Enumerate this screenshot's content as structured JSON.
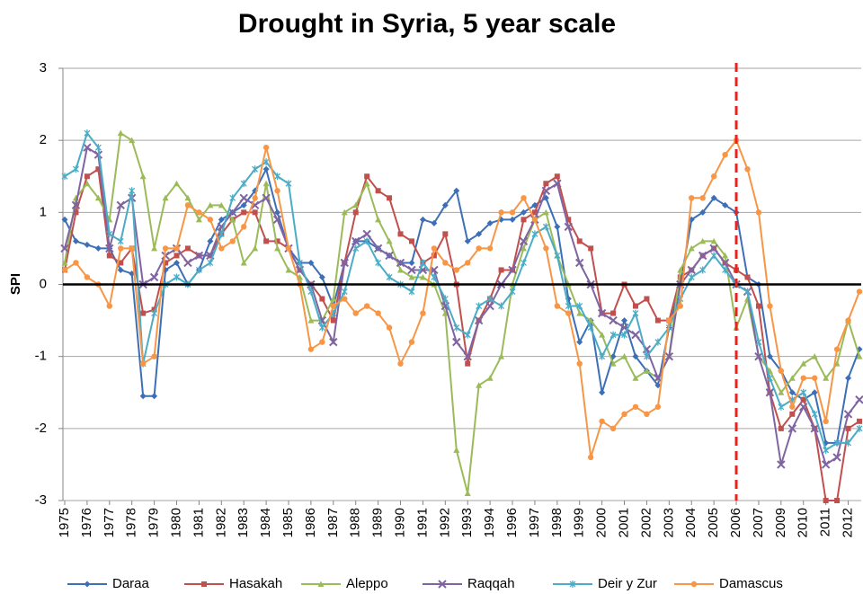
{
  "chart_data": {
    "type": "line",
    "title": "Drought in Syria, 5 year scale",
    "y_label": "SPI",
    "categories": [
      "1975",
      null,
      "1976",
      null,
      "1977",
      null,
      "1978",
      null,
      "1979",
      null,
      "1980",
      null,
      "1981",
      null,
      "1982",
      null,
      "1983",
      null,
      "1984",
      null,
      "1985",
      null,
      "1986",
      null,
      "1987",
      null,
      "1988",
      null,
      "1989",
      null,
      "1990",
      null,
      "1991",
      null,
      "1992",
      null,
      "1993",
      null,
      "1994",
      null,
      "1996",
      null,
      "1997",
      null,
      "1998",
      null,
      "1999",
      null,
      "2000",
      null,
      "2001",
      null,
      "2002",
      null,
      "2003",
      null,
      "2004",
      null,
      "2005",
      null,
      "2006",
      null,
      "2007",
      null,
      "2009",
      null,
      "2010",
      null,
      "2011",
      null,
      "2012",
      null
    ],
    "ylim": [
      -3,
      3
    ],
    "yticks": [
      -3,
      -2,
      -1,
      0,
      1,
      2,
      3
    ],
    "grid": true,
    "hline": 0,
    "vline_index": 60,
    "vline_color": "#e8231f",
    "series": [
      {
        "name": "Daraa",
        "color": "#3d6fb6",
        "marker": "diamond",
        "values": [
          0.9,
          0.6,
          0.55,
          0.5,
          0.5,
          0.2,
          0.15,
          -1.55,
          -1.55,
          0.2,
          0.3,
          0.0,
          0.2,
          0.6,
          0.9,
          1.0,
          1.1,
          1.3,
          1.6,
          1.0,
          0.5,
          0.3,
          0.3,
          0.1,
          -0.3,
          0.3,
          0.6,
          0.6,
          0.5,
          0.4,
          0.3,
          0.3,
          0.9,
          0.85,
          1.1,
          1.3,
          0.6,
          0.7,
          0.85,
          0.9,
          0.9,
          1.0,
          1.1,
          1.2,
          0.8,
          -0.2,
          -0.8,
          -0.5,
          -1.5,
          -1.0,
          -0.5,
          -1.0,
          -1.2,
          -1.4,
          -0.6,
          0.0,
          0.9,
          1.0,
          1.2,
          1.1,
          1.0,
          0.1,
          0.0,
          -1.0,
          -1.2,
          -1.5,
          -1.6,
          -1.5,
          -2.2,
          -2.2,
          -1.3,
          -0.9
        ]
      },
      {
        "name": "Hasakah",
        "color": "#c0504d",
        "marker": "square",
        "values": [
          0.2,
          1.0,
          1.5,
          1.6,
          0.4,
          0.3,
          0.5,
          -0.4,
          -0.35,
          0.3,
          0.4,
          0.5,
          0.4,
          0.4,
          0.7,
          0.9,
          1.0,
          1.0,
          0.6,
          0.6,
          0.5,
          0.2,
          0.0,
          -0.2,
          -0.5,
          0.3,
          1.0,
          1.5,
          1.3,
          1.2,
          0.7,
          0.6,
          0.3,
          0.4,
          0.7,
          0.0,
          -1.1,
          -0.5,
          -0.2,
          0.2,
          0.2,
          0.9,
          1.0,
          1.4,
          1.5,
          0.9,
          0.6,
          0.5,
          -0.4,
          -0.4,
          0.0,
          -0.3,
          -0.2,
          -0.5,
          -0.5,
          0.1,
          0.2,
          0.4,
          0.5,
          0.3,
          0.2,
          0.1,
          -0.3,
          -1.5,
          -2.0,
          -1.8,
          -1.6,
          -2.0,
          -3.0,
          -3.0,
          -2.0,
          -1.9
        ]
      },
      {
        "name": "Aleppo",
        "color": "#9bbb59",
        "marker": "triangle",
        "values": [
          0.3,
          1.2,
          1.4,
          1.2,
          0.9,
          2.1,
          2.0,
          1.5,
          0.5,
          1.2,
          1.4,
          1.2,
          0.9,
          1.1,
          1.1,
          0.9,
          0.3,
          0.5,
          1.4,
          0.5,
          0.2,
          0.1,
          -0.5,
          -0.5,
          -0.2,
          1.0,
          1.1,
          1.4,
          0.9,
          0.6,
          0.2,
          0.1,
          0.1,
          0.0,
          -0.4,
          -2.3,
          -2.9,
          -1.4,
          -1.3,
          -1.0,
          0.0,
          0.5,
          0.9,
          1.0,
          0.4,
          0.0,
          -0.4,
          -0.5,
          -0.7,
          -1.1,
          -1.0,
          -1.3,
          -1.2,
          -1.3,
          -1.0,
          0.2,
          0.5,
          0.6,
          0.6,
          0.4,
          -0.6,
          -0.2,
          -1.0,
          -1.2,
          -1.5,
          -1.3,
          -1.1,
          -1.0,
          -1.3,
          -1.1,
          -0.5,
          -1.0
        ]
      },
      {
        "name": "Raqqah",
        "color": "#8064a2",
        "marker": "x",
        "values": [
          0.5,
          1.1,
          1.9,
          1.8,
          0.5,
          1.1,
          1.2,
          0.0,
          0.1,
          0.4,
          0.5,
          0.3,
          0.4,
          0.4,
          0.8,
          1.0,
          1.2,
          1.1,
          1.2,
          0.9,
          0.5,
          0.2,
          0.0,
          -0.5,
          -0.8,
          0.3,
          0.6,
          0.7,
          0.5,
          0.4,
          0.3,
          0.2,
          0.2,
          0.2,
          -0.3,
          -0.8,
          -1.0,
          -0.5,
          -0.3,
          0.0,
          0.2,
          0.6,
          0.9,
          1.3,
          1.4,
          0.8,
          0.3,
          0.0,
          -0.4,
          -0.5,
          -0.6,
          -0.7,
          -0.9,
          -1.3,
          -1.0,
          0.0,
          0.2,
          0.4,
          0.5,
          0.3,
          0.0,
          -0.1,
          -1.0,
          -1.5,
          -2.5,
          -2.0,
          -1.7,
          -2.0,
          -2.5,
          -2.4,
          -1.8,
          -1.6
        ]
      },
      {
        "name": "Deir y Zur",
        "color": "#4bacc6",
        "marker": "star",
        "values": [
          1.5,
          1.6,
          2.1,
          1.9,
          0.7,
          0.6,
          1.3,
          -1.1,
          -0.4,
          0.0,
          0.1,
          0.0,
          0.2,
          0.3,
          0.7,
          1.2,
          1.4,
          1.6,
          1.7,
          1.5,
          1.4,
          0.3,
          -0.1,
          -0.6,
          -0.4,
          -0.1,
          0.5,
          0.6,
          0.3,
          0.1,
          0.0,
          -0.1,
          0.3,
          0.1,
          -0.2,
          -0.6,
          -0.7,
          -0.3,
          -0.2,
          -0.3,
          -0.1,
          0.3,
          0.7,
          0.8,
          0.4,
          -0.3,
          -0.3,
          -0.6,
          -1.0,
          -0.7,
          -0.7,
          -0.4,
          -1.0,
          -0.8,
          -0.6,
          -0.2,
          0.1,
          0.2,
          0.4,
          0.2,
          0.0,
          -0.1,
          -0.8,
          -1.3,
          -1.7,
          -1.6,
          -1.5,
          -1.8,
          -2.3,
          -2.2,
          -2.2,
          -2.0
        ]
      },
      {
        "name": "Damascus",
        "color": "#f79646",
        "marker": "circle",
        "values": [
          0.2,
          0.3,
          0.1,
          0.0,
          -0.3,
          0.5,
          0.5,
          -1.1,
          -1.0,
          0.5,
          0.5,
          1.1,
          1.0,
          0.9,
          0.5,
          0.6,
          0.8,
          1.2,
          1.9,
          1.3,
          0.5,
          0.0,
          -0.9,
          -0.8,
          -0.3,
          -0.2,
          -0.4,
          -0.3,
          -0.4,
          -0.6,
          -1.1,
          -0.8,
          -0.4,
          0.5,
          0.3,
          0.2,
          0.3,
          0.5,
          0.5,
          1.0,
          1.0,
          1.2,
          0.9,
          0.5,
          -0.3,
          -0.4,
          -1.1,
          -2.4,
          -1.9,
          -2.0,
          -1.8,
          -1.7,
          -1.8,
          -1.7,
          -0.5,
          -0.3,
          1.2,
          1.2,
          1.5,
          1.8,
          2.0,
          1.6,
          1.0,
          -0.3,
          -1.2,
          -1.7,
          -1.3,
          -1.3,
          -1.9,
          -0.9,
          -0.5,
          -0.1
        ]
      }
    ]
  }
}
